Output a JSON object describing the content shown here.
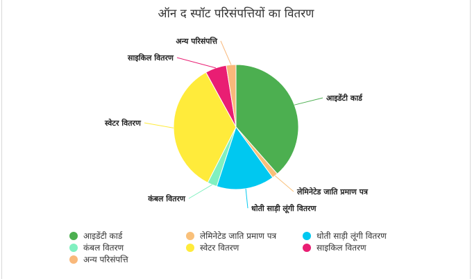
{
  "chart_data": {
    "type": "pie",
    "title": "ऑन द स्पॉट परिसंपत्तियों का वितरण",
    "legend_position": "bottom",
    "categories": [
      "आइडेंटी कार्ड",
      "लेमिनेटेड जाति प्रमाण पत्र",
      "धोती साड़ी लूंगी वितरण",
      "कंबल वितरण",
      "स्वेटर वितरण",
      "साइकिल वितरण",
      "अन्य परिसंपत्ति"
    ],
    "values": [
      38.5,
      1.5,
      15.0,
      2.5,
      34.5,
      5.5,
      2.5
    ],
    "colors": [
      "#4caf50",
      "#f9c07a",
      "#00c8f0",
      "#80f0c0",
      "#ffeb3b",
      "#e91e73",
      "#f9b87a"
    ]
  }
}
